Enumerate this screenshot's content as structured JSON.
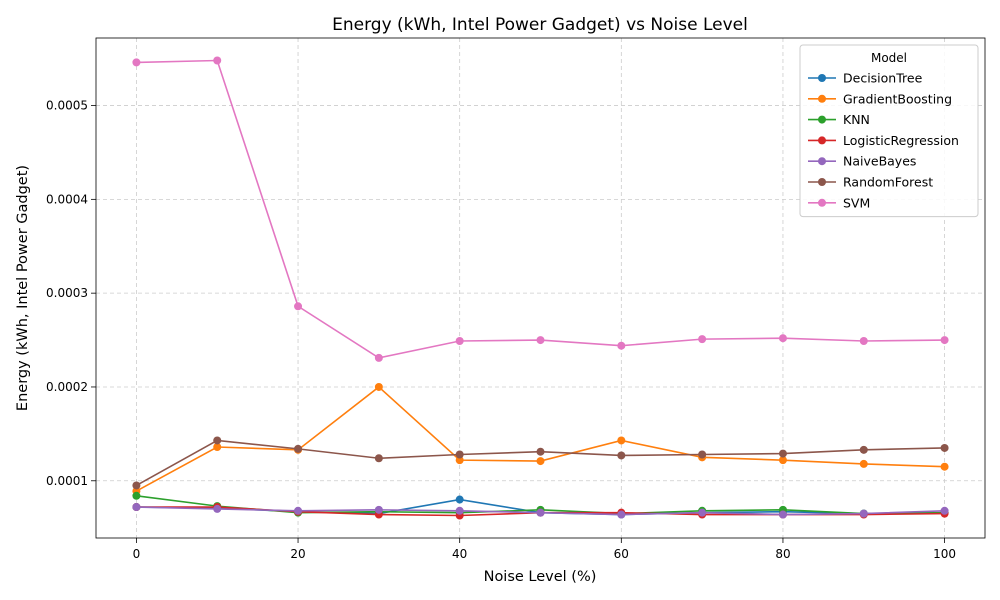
{
  "chart_data": {
    "type": "line",
    "title": "Energy (kWh, Intel Power Gadget) vs Noise Level",
    "xlabel": "Noise Level (%)",
    "ylabel": "Energy (kWh, Intel Power Gadget)",
    "xlim": [
      -5,
      105
    ],
    "ylim": [
      3.9e-05,
      0.000572
    ],
    "xticks": [
      0,
      20,
      40,
      60,
      80,
      100
    ],
    "yticks": [
      0.0001,
      0.0002,
      0.0003,
      0.0004,
      0.0005
    ],
    "ytick_labels": [
      "0.0001",
      "0.0002",
      "0.0003",
      "0.0004",
      "0.0005"
    ],
    "grid": true,
    "legend_title": "Model",
    "legend_position": "top-right",
    "x": [
      0,
      10,
      20,
      30,
      40,
      50,
      60,
      70,
      80,
      90,
      100
    ],
    "series": [
      {
        "name": "DecisionTree",
        "color": "#1f77b4",
        "values": [
          7.2e-05,
          7.1e-05,
          6.7e-05,
          6.5e-05,
          8e-05,
          6.6e-05,
          6.4e-05,
          6.6e-05,
          6.7e-05,
          6.5e-05,
          6.6e-05
        ]
      },
      {
        "name": "GradientBoosting",
        "color": "#ff7f0e",
        "values": [
          8.9e-05,
          0.000136,
          0.000133,
          0.0002,
          0.000122,
          0.000121,
          0.000143,
          0.000125,
          0.000122,
          0.000118,
          0.000115
        ]
      },
      {
        "name": "KNN",
        "color": "#2ca02c",
        "values": [
          8.4e-05,
          7.3e-05,
          6.6e-05,
          6.7e-05,
          6.6e-05,
          6.9e-05,
          6.5e-05,
          6.8e-05,
          6.9e-05,
          6.5e-05,
          6.6e-05
        ]
      },
      {
        "name": "LogisticRegression",
        "color": "#d62728",
        "values": [
          7.2e-05,
          7.2e-05,
          6.7e-05,
          6.4e-05,
          6.3e-05,
          6.6e-05,
          6.6e-05,
          6.4e-05,
          6.4e-05,
          6.4e-05,
          6.5e-05
        ]
      },
      {
        "name": "NaiveBayes",
        "color": "#9467bd",
        "values": [
          7.2e-05,
          7e-05,
          6.8e-05,
          6.9e-05,
          6.8e-05,
          6.6e-05,
          6.4e-05,
          6.6e-05,
          6.4e-05,
          6.5e-05,
          6.8e-05
        ]
      },
      {
        "name": "RandomForest",
        "color": "#8c564b",
        "values": [
          9.5e-05,
          0.000143,
          0.000134,
          0.000124,
          0.000128,
          0.000131,
          0.000127,
          0.000128,
          0.000129,
          0.000133,
          0.000135
        ]
      },
      {
        "name": "SVM",
        "color": "#e377c2",
        "values": [
          0.000546,
          0.000548,
          0.000286,
          0.000231,
          0.000249,
          0.00025,
          0.000244,
          0.000251,
          0.000252,
          0.000249,
          0.00025
        ]
      }
    ]
  }
}
